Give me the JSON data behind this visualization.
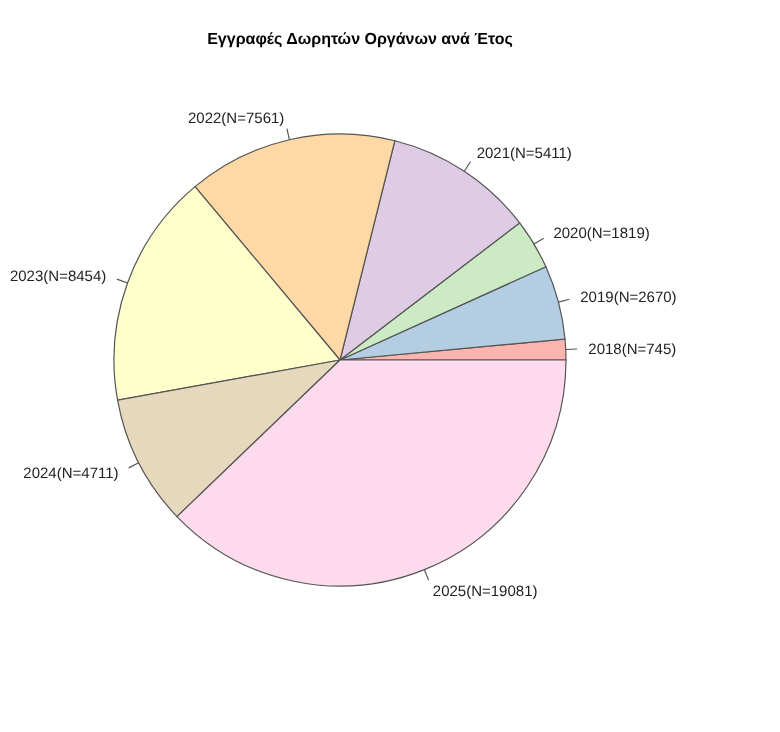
{
  "chart_data": {
    "type": "pie",
    "title": "Εγγραφές Δωρητών Οργάνων ανά Έτος",
    "categories": [
      "2018(N=745)",
      "2019(N=2670)",
      "2020(N=1819)",
      "2021(N=5411)",
      "2022(N=7561)",
      "2023(N=8454)",
      "2024(N=4711)",
      "2025(N=19081)"
    ],
    "values": [
      745,
      2670,
      1819,
      5411,
      7561,
      8454,
      4711,
      19081
    ],
    "colors": [
      "#fbb4ae",
      "#b3cde3",
      "#ccebc5",
      "#decbe4",
      "#fed9a6",
      "#ffffcc",
      "#e5d8bd",
      "#fddaec"
    ]
  }
}
